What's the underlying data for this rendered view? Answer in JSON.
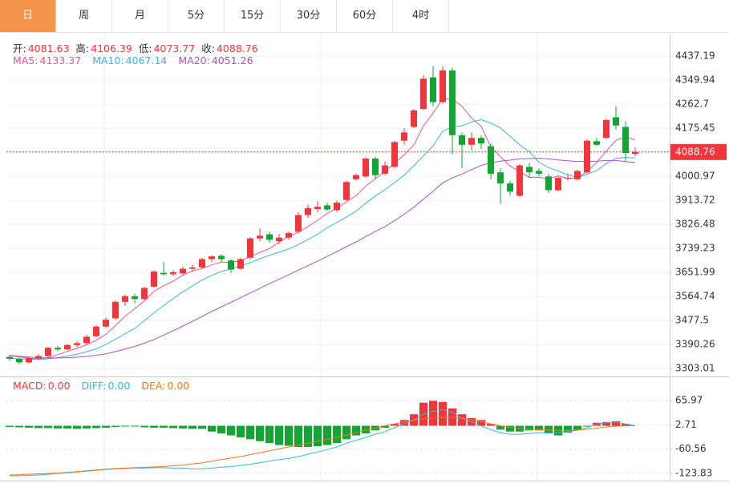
{
  "tabs": [
    "日",
    "周",
    "月",
    "5分",
    "15分",
    "30分",
    "60分",
    "4时"
  ],
  "selected_tab": 0,
  "chart_data": [
    {
      "type": "candlestick",
      "ohlc_labels": [
        "开:",
        "高:",
        "低:",
        "收:"
      ],
      "open": [
        3345,
        3338,
        3325,
        3340,
        3348,
        3378,
        3372,
        3388,
        3395,
        3420,
        3455,
        3485,
        3545,
        3565,
        3555,
        3600,
        3650,
        3645,
        3648,
        3665,
        3670,
        3700,
        3712,
        3695,
        3665,
        3705,
        3775,
        3790,
        3765,
        3778,
        3800,
        3860,
        3882,
        3895,
        3878,
        3915,
        3990,
        4000,
        4065,
        4010,
        4035,
        4130,
        4180,
        4245,
        4360,
        4270,
        4385,
        4150,
        4115,
        4140,
        4110,
        4015,
        3975,
        3930,
        4035,
        4020,
        4000,
        3950,
        3995,
        3990,
        4015,
        4128,
        4140,
        4215,
        4180,
        4081.63
      ],
      "high": [
        3352,
        3342,
        3348,
        3355,
        3382,
        3385,
        3392,
        3402,
        3425,
        3460,
        3488,
        3550,
        3572,
        3575,
        3600,
        3660,
        3690,
        3660,
        3672,
        3680,
        3705,
        3715,
        3718,
        3700,
        3705,
        3780,
        3812,
        3800,
        3790,
        3800,
        3870,
        3898,
        3910,
        3905,
        3912,
        3985,
        4012,
        4070,
        4072,
        4055,
        4130,
        4175,
        4245,
        4368,
        4400,
        4400,
        4395,
        4160,
        4160,
        4150,
        4120,
        4030,
        3985,
        4045,
        4050,
        4030,
        4010,
        4000,
        4010,
        4025,
        4135,
        4140,
        4210,
        4255,
        4200,
        4106.39
      ],
      "low": [
        3330,
        3318,
        3320,
        3335,
        3340,
        3365,
        3368,
        3380,
        3390,
        3415,
        3450,
        3480,
        3530,
        3540,
        3550,
        3595,
        3640,
        3638,
        3640,
        3655,
        3665,
        3690,
        3690,
        3650,
        3660,
        3700,
        3765,
        3760,
        3755,
        3770,
        3795,
        3850,
        3870,
        3875,
        3870,
        3910,
        3985,
        3995,
        3990,
        4005,
        4030,
        4115,
        4175,
        4240,
        4255,
        4265,
        4080,
        4030,
        4095,
        4100,
        3990,
        3900,
        3930,
        3925,
        3995,
        4000,
        3940,
        3945,
        3985,
        3985,
        4010,
        4110,
        4135,
        4170,
        4055,
        4073.77
      ],
      "close": [
        3338,
        3325,
        3340,
        3348,
        3378,
        3372,
        3388,
        3395,
        3418,
        3455,
        3480,
        3545,
        3565,
        3555,
        3595,
        3655,
        3645,
        3652,
        3665,
        3670,
        3700,
        3710,
        3700,
        3662,
        3700,
        3775,
        3785,
        3770,
        3778,
        3795,
        3860,
        3885,
        3890,
        3880,
        3905,
        3980,
        4005,
        4065,
        4005,
        4040,
        4125,
        4160,
        4240,
        4355,
        4270,
        4385,
        4150,
        4115,
        4140,
        4120,
        4010,
        3975,
        3945,
        4040,
        4015,
        4010,
        3950,
        3995,
        3995,
        4020,
        4130,
        4115,
        4205,
        4185,
        4085,
        4088.76
      ],
      "up_color": "#f0363b",
      "down_color": "#13a531",
      "series": [
        {
          "name": "MA5:",
          "color": "#e8578a",
          "values": [
            3350,
            3345,
            3340,
            3338,
            3342,
            3353,
            3365,
            3376,
            3389,
            3406,
            3427,
            3459,
            3493,
            3520,
            3548,
            3583,
            3603,
            3620,
            3642,
            3657,
            3666,
            3679,
            3689,
            3688,
            3694,
            3709,
            3724,
            3738,
            3762,
            3781,
            3798,
            3818,
            3841,
            3866,
            3884,
            3908,
            3930,
            3965,
            3992,
            4019,
            4048,
            4079,
            4114,
            4184,
            4230,
            4282,
            4280,
            4255,
            4212,
            4182,
            4107,
            4072,
            4038,
            4018,
            3997,
            3997,
            3992,
            4002,
            3993,
            3994,
            4018,
            4051,
            4093,
            4131,
            4144,
            4133.37
          ]
        },
        {
          "name": "MA10:",
          "color": "#3cb6d8",
          "values": [
            3340,
            3338,
            3337,
            3336,
            3338,
            3342,
            3348,
            3355,
            3364,
            3374,
            3390,
            3409,
            3429,
            3448,
            3477,
            3505,
            3531,
            3557,
            3581,
            3603,
            3624,
            3641,
            3655,
            3665,
            3676,
            3687,
            3701,
            3714,
            3725,
            3737,
            3753,
            3771,
            3790,
            3814,
            3833,
            3853,
            3874,
            3903,
            3929,
            3952,
            3978,
            4005,
            4039,
            4075,
            4111,
            4165,
            4180,
            4184,
            4198,
            4206,
            4194,
            4176,
            4146,
            4115,
            4090,
            4052,
            4032,
            4020,
            4006,
            3996,
            4008,
            4021,
            4047,
            4066,
            4069,
            4067.14
          ]
        },
        {
          "name": "MA20:",
          "color": "#b04fc8",
          "values": [
            3350,
            3347,
            3344,
            3342,
            3341,
            3341,
            3342,
            3344,
            3347,
            3351,
            3356,
            3364,
            3373,
            3383,
            3395,
            3408,
            3424,
            3440,
            3457,
            3474,
            3492,
            3510,
            3527,
            3543,
            3560,
            3577,
            3594,
            3611,
            3627,
            3643,
            3660,
            3676,
            3693,
            3710,
            3727,
            3745,
            3762,
            3782,
            3800,
            3818,
            3840,
            3863,
            3888,
            3918,
            3946,
            3977,
            3995,
            4009,
            4025,
            4040,
            4050,
            4056,
            4059,
            4064,
            4065,
            4066,
            4064,
            4060,
            4057,
            4054,
            4055,
            4055,
            4058,
            4058,
            4054,
            4051.26
          ]
        }
      ],
      "ylim": [
        3273.93,
        4518.62
      ],
      "yticks": [
        3303.01,
        3390.26,
        3477.5,
        3564.74,
        3651.99,
        3739.23,
        3826.48,
        3913.72,
        4000.97,
        4088.76,
        4175.45,
        4262.7,
        4349.94,
        4437.19
      ],
      "grid": true
    },
    {
      "type": "macd",
      "series": [
        {
          "name": "MACD:",
          "color": "#f0363b",
          "down_color": "#13a531",
          "kind": "bar",
          "last_value_label": "0.00",
          "values": [
            -3,
            -4,
            -5,
            -6,
            -6,
            -7,
            -7,
            -8,
            -7,
            -6,
            -5,
            -3,
            -2,
            -2,
            -4,
            -5,
            -5,
            -6,
            -7,
            -8,
            -8,
            -15,
            -20,
            -25,
            -30,
            -35,
            -40,
            -45,
            -50,
            -52,
            -55,
            -55,
            -53,
            -50,
            -45,
            -35,
            -25,
            -20,
            -12,
            -5,
            5,
            15,
            30,
            60,
            65,
            62,
            45,
            30,
            20,
            15,
            5,
            -10,
            -15,
            -15,
            -12,
            -12,
            -20,
            -25,
            -18,
            -10,
            -2,
            8,
            10,
            12,
            5,
            0
          ]
        },
        {
          "name": "DIFF:",
          "color": "#3cb6d8",
          "kind": "line",
          "last_value_label": "0.00",
          "values": [
            -130,
            -130,
            -129,
            -128,
            -126,
            -124,
            -122,
            -120,
            -118,
            -116,
            -114,
            -112,
            -111,
            -110,
            -110,
            -109,
            -109,
            -110,
            -110,
            -112,
            -112,
            -110,
            -108,
            -106,
            -103,
            -100,
            -96,
            -92,
            -88,
            -85,
            -80,
            -74,
            -68,
            -62,
            -55,
            -45,
            -38,
            -30,
            -22,
            -15,
            -5,
            5,
            15,
            30,
            38,
            42,
            35,
            20,
            10,
            0,
            -10,
            -18,
            -22,
            -22,
            -20,
            -18,
            -18,
            -18,
            -15,
            -12,
            -5,
            5,
            8,
            10,
            5,
            0
          ]
        },
        {
          "name": "DEA:",
          "color": "#f07a1a",
          "kind": "line",
          "last_value_label": "0.00",
          "values": [
            -128,
            -127,
            -126,
            -125,
            -124,
            -123,
            -121,
            -119,
            -117,
            -115,
            -113,
            -111,
            -110,
            -109,
            -108,
            -107,
            -106,
            -104,
            -102,
            -99,
            -96,
            -92,
            -88,
            -84,
            -80,
            -75,
            -70,
            -65,
            -60,
            -55,
            -50,
            -45,
            -40,
            -35,
            -30,
            -24,
            -18,
            -12,
            -6,
            0,
            5,
            10,
            14,
            18,
            20,
            22,
            22,
            20,
            16,
            11,
            5,
            0,
            -4,
            -7,
            -9,
            -10,
            -11,
            -12,
            -12,
            -11,
            -9,
            -6,
            -3,
            -1,
            0,
            0
          ]
        }
      ],
      "ylim": [
        -142.5,
        124.05
      ],
      "yticks": [
        -123.83,
        -60.56,
        2.71,
        65.97
      ],
      "grid": true
    }
  ]
}
